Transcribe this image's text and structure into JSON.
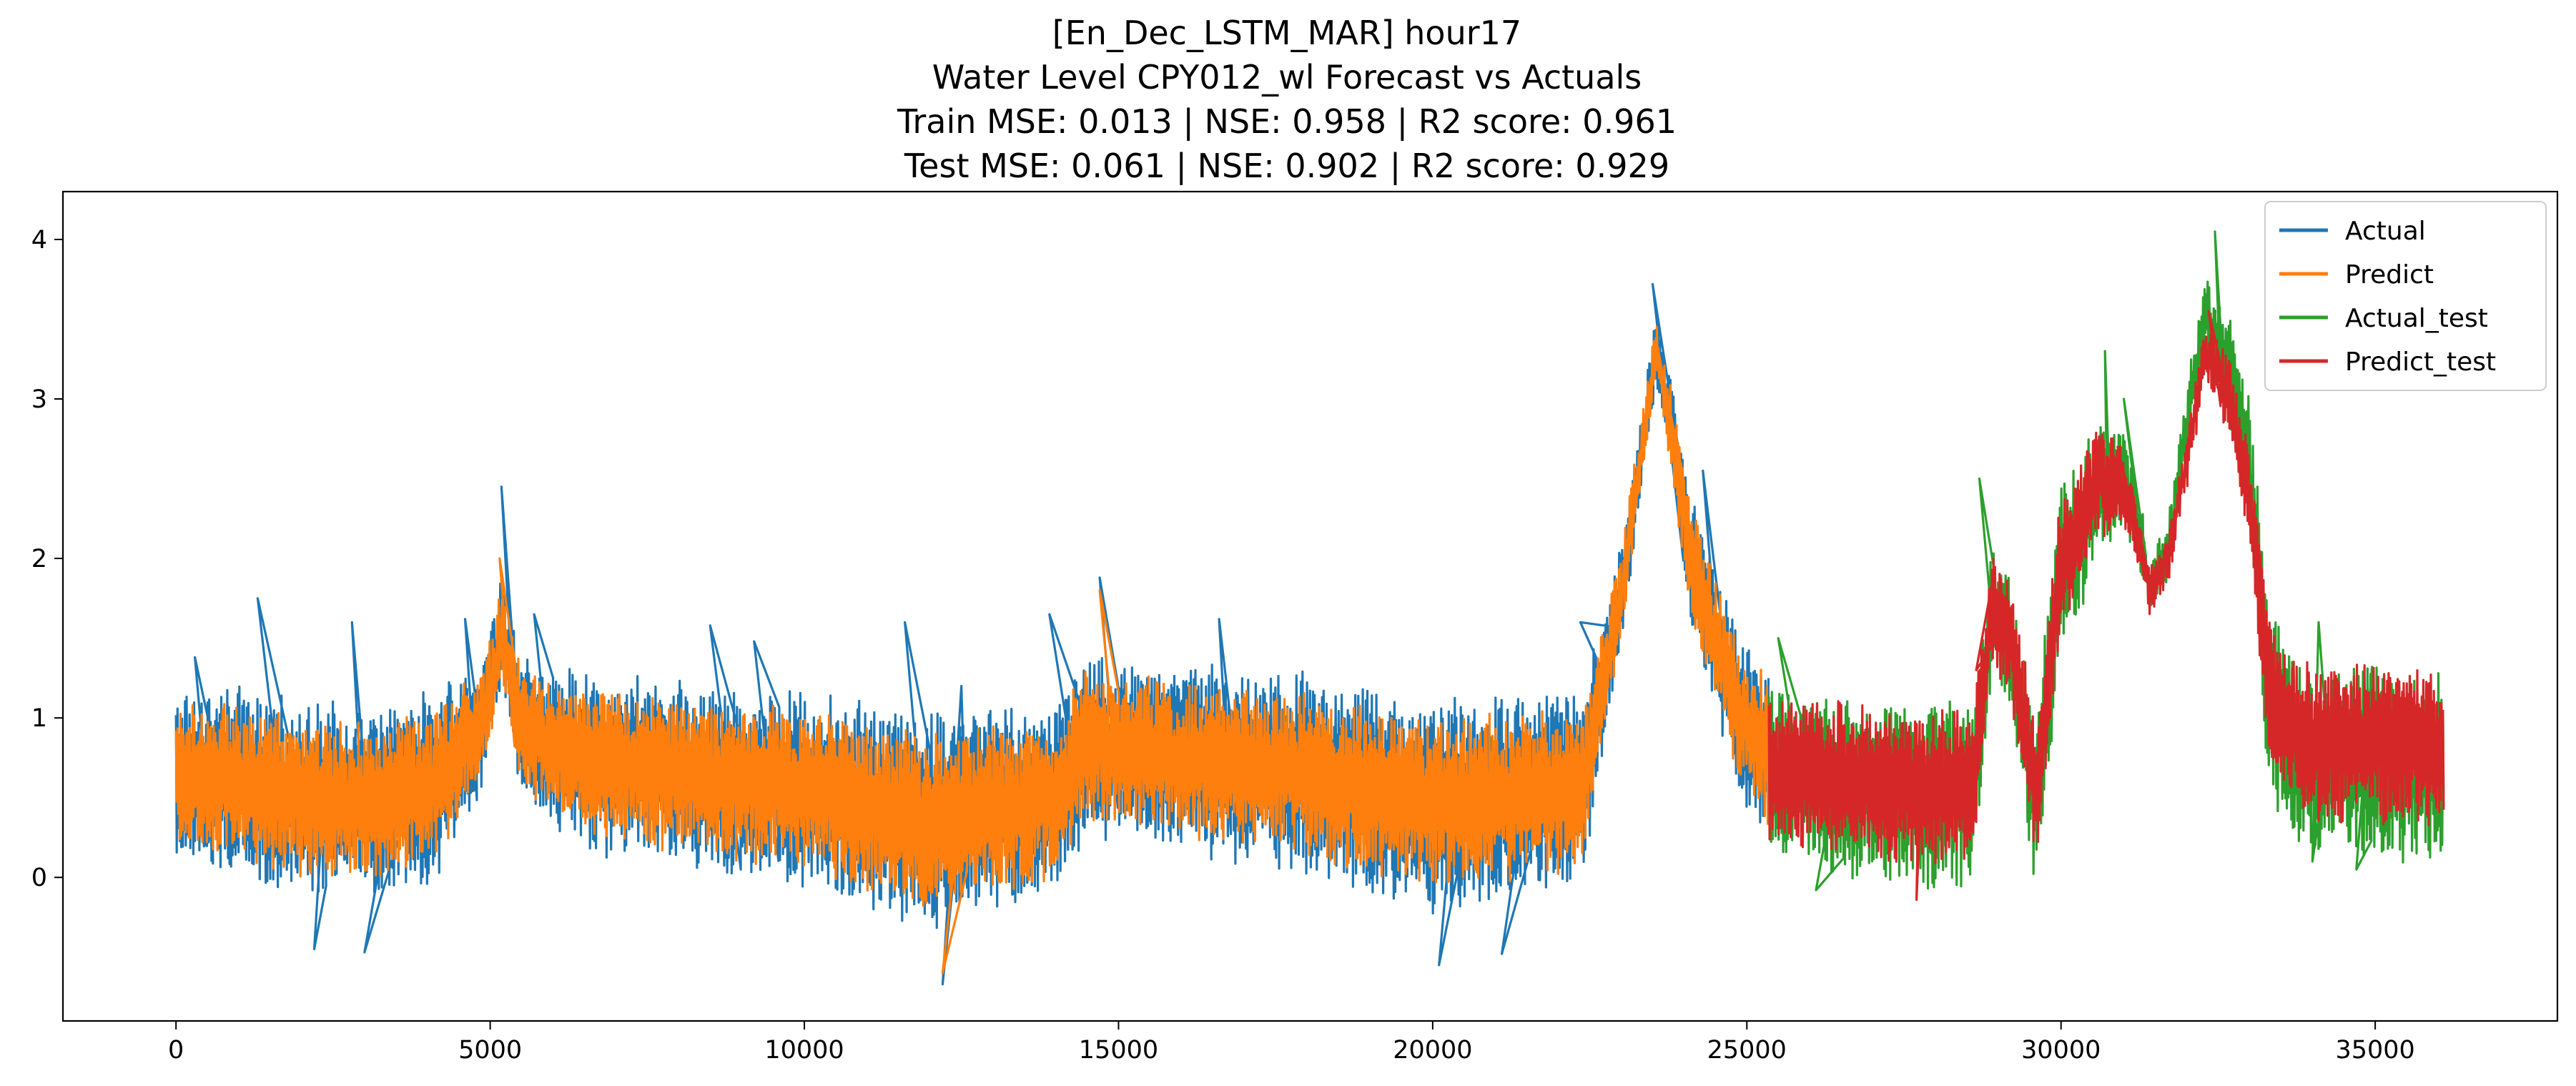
{
  "chart_data": {
    "type": "line",
    "title_lines": [
      "[En_Dec_LSTM_MAR] hour17",
      "Water Level CPY012_wl Forecast vs Actuals",
      "Train MSE: 0.013 | NSE: 0.958 | R2 score: 0.961",
      "Test  MSE: 0.061 | NSE: 0.902 | R2 score: 0.929"
    ],
    "xlabel": "",
    "ylabel": "",
    "xlim": [
      -1800,
      37900
    ],
    "ylim": [
      -0.9,
      4.3
    ],
    "xticks": [
      0,
      5000,
      10000,
      15000,
      20000,
      25000,
      30000,
      35000
    ],
    "xtick_labels": [
      "0",
      "5000",
      "10000",
      "15000",
      "20000",
      "25000",
      "30000",
      "35000"
    ],
    "yticks": [
      0,
      1,
      2,
      3,
      4
    ],
    "ytick_labels": [
      "0",
      "1",
      "2",
      "3",
      "4"
    ],
    "grid": false,
    "legend": "top-right",
    "train_end": 25350,
    "test_end": 36100,
    "series": [
      {
        "name": "Actual",
        "color": "#1f77b4",
        "segment": "train",
        "amp_scale": 1.18,
        "offset": 0.0,
        "level": [
          [
            0,
            0.62
          ],
          [
            1000,
            0.6
          ],
          [
            2000,
            0.5
          ],
          [
            3000,
            0.45
          ],
          [
            4000,
            0.55
          ],
          [
            4800,
            0.9
          ],
          [
            5200,
            1.5
          ],
          [
            5500,
            0.95
          ],
          [
            6000,
            0.8
          ],
          [
            7000,
            0.7
          ],
          [
            8000,
            0.65
          ],
          [
            9000,
            0.6
          ],
          [
            10000,
            0.55
          ],
          [
            11000,
            0.45
          ],
          [
            12000,
            0.35
          ],
          [
            12500,
            0.4
          ],
          [
            13500,
            0.45
          ],
          [
            14000,
            0.5
          ],
          [
            14500,
            0.85
          ],
          [
            15000,
            0.8
          ],
          [
            16000,
            0.75
          ],
          [
            17000,
            0.7
          ],
          [
            18000,
            0.65
          ],
          [
            19000,
            0.55
          ],
          [
            20000,
            0.45
          ],
          [
            21000,
            0.5
          ],
          [
            22000,
            0.55
          ],
          [
            22400,
            0.6
          ],
          [
            22700,
            1.2
          ],
          [
            23000,
            1.8
          ],
          [
            23300,
            2.6
          ],
          [
            23550,
            3.3
          ],
          [
            23800,
            2.8
          ],
          [
            24100,
            2.0
          ],
          [
            24500,
            1.5
          ],
          [
            24900,
            1.0
          ],
          [
            25350,
            0.8
          ]
        ],
        "amp": [
          [
            0,
            0.45
          ],
          [
            4000,
            0.5
          ],
          [
            5000,
            0.3
          ],
          [
            5500,
            0.35
          ],
          [
            6500,
            0.45
          ],
          [
            10000,
            0.5
          ],
          [
            12000,
            0.55
          ],
          [
            14000,
            0.5
          ],
          [
            15000,
            0.45
          ],
          [
            20000,
            0.55
          ],
          [
            22300,
            0.5
          ],
          [
            22800,
            0.3
          ],
          [
            23500,
            0.15
          ],
          [
            24200,
            0.35
          ],
          [
            25350,
            0.45
          ]
        ],
        "spikes": [
          [
            300,
            1.38
          ],
          [
            1300,
            1.75
          ],
          [
            2800,
            1.6
          ],
          [
            4600,
            1.62
          ],
          [
            5180,
            2.45
          ],
          [
            5700,
            1.65
          ],
          [
            8500,
            1.58
          ],
          [
            9200,
            1.48
          ],
          [
            11600,
            1.6
          ],
          [
            12500,
            1.2
          ],
          [
            13900,
            1.65
          ],
          [
            14700,
            1.88
          ],
          [
            16600,
            1.62
          ],
          [
            22350,
            1.6
          ],
          [
            23500,
            3.72
          ],
          [
            24300,
            2.55
          ],
          [
            2200,
            -0.45
          ],
          [
            3000,
            -0.47
          ],
          [
            12200,
            -0.67
          ],
          [
            20100,
            -0.55
          ],
          [
            21100,
            -0.48
          ]
        ]
      },
      {
        "name": "Predict",
        "color": "#ff7f0e",
        "segment": "train",
        "amp_scale": 0.95,
        "offset": 0.0,
        "level": [
          [
            0,
            0.62
          ],
          [
            1000,
            0.6
          ],
          [
            2000,
            0.5
          ],
          [
            3000,
            0.45
          ],
          [
            4000,
            0.55
          ],
          [
            4800,
            0.9
          ],
          [
            5200,
            1.5
          ],
          [
            5500,
            0.95
          ],
          [
            6000,
            0.8
          ],
          [
            7000,
            0.7
          ],
          [
            8000,
            0.65
          ],
          [
            9000,
            0.6
          ],
          [
            10000,
            0.55
          ],
          [
            11000,
            0.45
          ],
          [
            12000,
            0.35
          ],
          [
            12500,
            0.4
          ],
          [
            13500,
            0.45
          ],
          [
            14000,
            0.5
          ],
          [
            14500,
            0.85
          ],
          [
            15000,
            0.8
          ],
          [
            16000,
            0.75
          ],
          [
            17000,
            0.7
          ],
          [
            18000,
            0.65
          ],
          [
            19000,
            0.55
          ],
          [
            20000,
            0.45
          ],
          [
            21000,
            0.5
          ],
          [
            22000,
            0.55
          ],
          [
            22400,
            0.6
          ],
          [
            22700,
            1.2
          ],
          [
            23000,
            1.8
          ],
          [
            23300,
            2.6
          ],
          [
            23550,
            3.3
          ],
          [
            23800,
            2.8
          ],
          [
            24100,
            2.0
          ],
          [
            24500,
            1.5
          ],
          [
            24900,
            1.0
          ],
          [
            25350,
            0.8
          ]
        ],
        "amp": [
          [
            0,
            0.45
          ],
          [
            4000,
            0.5
          ],
          [
            5000,
            0.3
          ],
          [
            5500,
            0.35
          ],
          [
            6500,
            0.45
          ],
          [
            10000,
            0.5
          ],
          [
            12000,
            0.55
          ],
          [
            14000,
            0.5
          ],
          [
            15000,
            0.45
          ],
          [
            20000,
            0.55
          ],
          [
            22300,
            0.5
          ],
          [
            22800,
            0.3
          ],
          [
            23500,
            0.15
          ],
          [
            24200,
            0.35
          ],
          [
            25350,
            0.45
          ]
        ],
        "spikes": [
          [
            5150,
            2.0
          ],
          [
            14700,
            1.8
          ],
          [
            23550,
            3.38
          ],
          [
            12200,
            -0.6
          ]
        ]
      },
      {
        "name": "Actual_test",
        "color": "#2ca02c",
        "segment": "test",
        "amp_scale": 1.15,
        "offset": -0.05,
        "level": [
          [
            25350,
            0.7
          ],
          [
            26000,
            0.65
          ],
          [
            27000,
            0.6
          ],
          [
            28000,
            0.55
          ],
          [
            28600,
            0.6
          ],
          [
            28900,
            1.7
          ],
          [
            29200,
            1.5
          ],
          [
            29600,
            0.5
          ],
          [
            30000,
            2.0
          ],
          [
            30300,
            2.2
          ],
          [
            30600,
            2.5
          ],
          [
            31000,
            2.55
          ],
          [
            31200,
            2.3
          ],
          [
            31400,
            1.85
          ],
          [
            31700,
            2.1
          ],
          [
            32000,
            2.9
          ],
          [
            32300,
            3.6
          ],
          [
            32700,
            3.2
          ],
          [
            33000,
            2.6
          ],
          [
            33300,
            1.2
          ],
          [
            33800,
            0.8
          ],
          [
            35000,
            0.78
          ],
          [
            36100,
            0.75
          ]
        ],
        "amp": [
          [
            25350,
            0.45
          ],
          [
            28500,
            0.5
          ],
          [
            28900,
            0.35
          ],
          [
            29800,
            0.45
          ],
          [
            30600,
            0.35
          ],
          [
            31400,
            0.15
          ],
          [
            32000,
            0.15
          ],
          [
            32500,
            0.2
          ],
          [
            33000,
            0.35
          ],
          [
            33400,
            0.5
          ],
          [
            36100,
            0.5
          ]
        ],
        "spikes": [
          [
            25500,
            1.5
          ],
          [
            28700,
            2.5
          ],
          [
            30700,
            3.3
          ],
          [
            31000,
            3.0
          ],
          [
            32450,
            4.05
          ],
          [
            34100,
            1.6
          ],
          [
            35700,
            1.52
          ],
          [
            26100,
            -0.08
          ],
          [
            34000,
            0.1
          ],
          [
            34700,
            0.05
          ]
        ]
      },
      {
        "name": "Predict_test",
        "color": "#d62728",
        "segment": "test",
        "amp_scale": 0.92,
        "offset": 0.0,
        "level": [
          [
            25350,
            0.7
          ],
          [
            26000,
            0.65
          ],
          [
            27000,
            0.6
          ],
          [
            28000,
            0.55
          ],
          [
            28600,
            0.6
          ],
          [
            28900,
            1.7
          ],
          [
            29200,
            1.5
          ],
          [
            29600,
            0.5
          ],
          [
            30000,
            2.0
          ],
          [
            30300,
            2.2
          ],
          [
            30600,
            2.5
          ],
          [
            31000,
            2.4
          ],
          [
            31200,
            2.2
          ],
          [
            31400,
            1.8
          ],
          [
            31700,
            2.0
          ],
          [
            32000,
            2.6
          ],
          [
            32300,
            3.3
          ],
          [
            32700,
            3.0
          ],
          [
            33000,
            2.4
          ],
          [
            33300,
            1.2
          ],
          [
            33800,
            0.85
          ],
          [
            35000,
            0.85
          ],
          [
            36100,
            0.8
          ]
        ],
        "amp": [
          [
            25350,
            0.45
          ],
          [
            28500,
            0.5
          ],
          [
            28900,
            0.35
          ],
          [
            29800,
            0.45
          ],
          [
            30600,
            0.35
          ],
          [
            31400,
            0.15
          ],
          [
            32000,
            0.15
          ],
          [
            32500,
            0.2
          ],
          [
            33000,
            0.35
          ],
          [
            33400,
            0.5
          ],
          [
            36100,
            0.5
          ]
        ],
        "spikes": [
          [
            32350,
            3.55
          ],
          [
            30900,
            2.7
          ],
          [
            28650,
            1.3
          ],
          [
            27700,
            -0.14
          ]
        ]
      }
    ]
  }
}
